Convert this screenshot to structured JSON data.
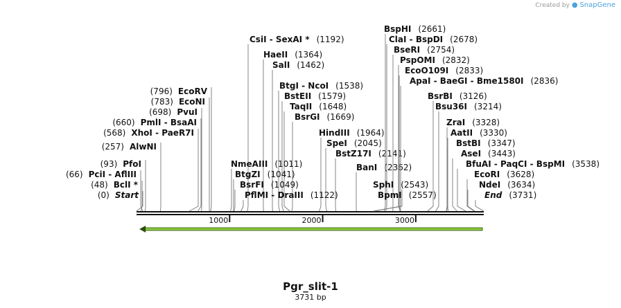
{
  "watermark": {
    "prefix": "Created by",
    "brand": "SnapGene"
  },
  "sequence": {
    "name": "Pgr_slit-1",
    "length_label": "3731 bp",
    "length": 3731
  },
  "ruler": {
    "ticks": [
      {
        "pos": 1000,
        "label": "1000"
      },
      {
        "pos": 2000,
        "label": "2000"
      },
      {
        "pos": 3000,
        "label": "3000"
      }
    ]
  },
  "feature": {
    "start": 1,
    "end": 3731,
    "direction": "reverse",
    "color": "#8ccc3c"
  },
  "left_labels": [
    {
      "names": [
        "Start"
      ],
      "italic": true,
      "site": 0,
      "pos_label": "(0)"
    },
    {
      "names": [
        "BclI *"
      ],
      "site": 48,
      "pos_label": "(48)"
    },
    {
      "names": [
        "PciI",
        "AflIII"
      ],
      "site": 66,
      "pos_label": "(66)"
    },
    {
      "names": [
        "PfoI"
      ],
      "site": 93,
      "pos_label": "(93)"
    },
    {
      "names": [
        "AlwNI"
      ],
      "site": 257,
      "pos_label": "(257)"
    },
    {
      "names": [
        "XhoI",
        "PaeR7I"
      ],
      "site": 568,
      "pos_label": "(568)"
    },
    {
      "names": [
        "PmlI",
        "BsaAI"
      ],
      "site": 660,
      "pos_label": "(660)"
    },
    {
      "names": [
        "PvuI"
      ],
      "site": 698,
      "pos_label": "(698)"
    },
    {
      "names": [
        "EcoNI"
      ],
      "site": 783,
      "pos_label": "(783)"
    },
    {
      "names": [
        "EcoRV"
      ],
      "site": 796,
      "pos_label": "(796)"
    }
  ],
  "right_labels": [
    {
      "names": [
        "CsiI",
        "SexAI *"
      ],
      "site": 1192,
      "pos_label": "(1192)"
    },
    {
      "names": [
        "HaeII"
      ],
      "site": 1364,
      "pos_label": "(1364)"
    },
    {
      "names": [
        "SalI"
      ],
      "site": 1462,
      "pos_label": "(1462)"
    },
    {
      "names": [
        "BtgI",
        "NcoI"
      ],
      "site": 1538,
      "pos_label": "(1538)"
    },
    {
      "names": [
        "BstEII"
      ],
      "site": 1579,
      "pos_label": "(1579)"
    },
    {
      "names": [
        "TaqII"
      ],
      "site": 1648,
      "pos_label": "(1648)"
    },
    {
      "names": [
        "BsrGI"
      ],
      "site": 1669,
      "pos_label": "(1669)"
    },
    {
      "names": [
        "HindIII"
      ],
      "site": 1964,
      "pos_label": "(1964)"
    },
    {
      "names": [
        "SpeI"
      ],
      "site": 2045,
      "pos_label": "(2045)"
    },
    {
      "names": [
        "BstZ17I"
      ],
      "site": 2141,
      "pos_label": "(2141)"
    },
    {
      "names": [
        "BanI"
      ],
      "site": 2362,
      "pos_label": "(2362)"
    },
    {
      "names": [
        "NmeAIII"
      ],
      "site": 1011,
      "pos_label": "(1011)"
    },
    {
      "names": [
        "BtgZI"
      ],
      "site": 1041,
      "pos_label": "(1041)"
    },
    {
      "names": [
        "BsrFI"
      ],
      "site": 1049,
      "pos_label": "(1049)"
    },
    {
      "names": [
        "PflMI",
        "DraIII"
      ],
      "site": 1122,
      "pos_label": "(1122)"
    },
    {
      "names": [
        "BspHI"
      ],
      "site": 2661,
      "pos_label": "(2661)"
    },
    {
      "names": [
        "ClaI",
        "BspDI"
      ],
      "site": 2678,
      "pos_label": "(2678)"
    },
    {
      "names": [
        "BseRI"
      ],
      "site": 2754,
      "pos_label": "(2754)"
    },
    {
      "names": [
        "PspOMI"
      ],
      "site": 2832,
      "pos_label": "(2832)"
    },
    {
      "names": [
        "EcoO109I"
      ],
      "site": 2833,
      "pos_label": "(2833)"
    },
    {
      "names": [
        "ApaI",
        "BaeGI",
        "Bme1580I"
      ],
      "site": 2836,
      "pos_label": "(2836)"
    },
    {
      "names": [
        "SphI"
      ],
      "site": 2543,
      "pos_label": "(2543)"
    },
    {
      "names": [
        "BpmI"
      ],
      "site": 2557,
      "pos_label": "(2557)"
    },
    {
      "names": [
        "BsrBI"
      ],
      "site": 3126,
      "pos_label": "(3126)"
    },
    {
      "names": [
        "Bsu36I"
      ],
      "site": 3214,
      "pos_label": "(3214)"
    },
    {
      "names": [
        "ZraI"
      ],
      "site": 3328,
      "pos_label": "(3328)"
    },
    {
      "names": [
        "AatII"
      ],
      "site": 3330,
      "pos_label": "(3330)"
    },
    {
      "names": [
        "BstBI"
      ],
      "site": 3347,
      "pos_label": "(3347)"
    },
    {
      "names": [
        "AseI"
      ],
      "site": 3443,
      "pos_label": "(3443)"
    },
    {
      "names": [
        "BfuAI",
        "PaqCI",
        "BspMI"
      ],
      "site": 3538,
      "pos_label": "(3538)"
    },
    {
      "names": [
        "EcoRI"
      ],
      "site": 3628,
      "pos_label": "(3628)"
    },
    {
      "names": [
        "NdeI"
      ],
      "site": 3634,
      "pos_label": "(3634)"
    },
    {
      "names": [
        "End"
      ],
      "italic": true,
      "site": 3731,
      "pos_label": "(3731)"
    }
  ]
}
